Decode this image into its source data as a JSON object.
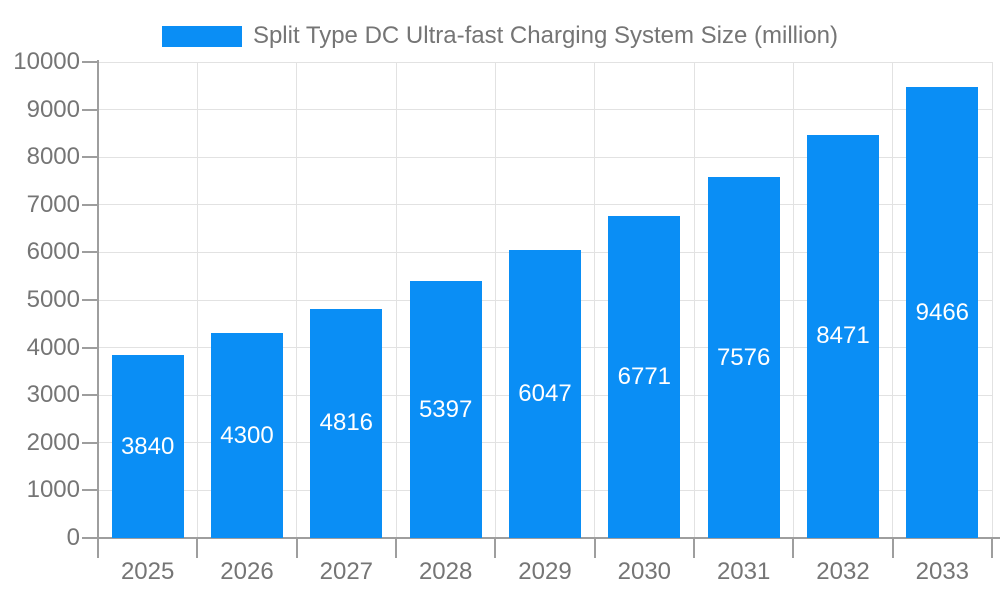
{
  "chart_data": {
    "type": "bar",
    "title": "",
    "xlabel": "",
    "ylabel": "",
    "categories": [
      "2025",
      "2026",
      "2027",
      "2028",
      "2029",
      "2030",
      "2031",
      "2032",
      "2033"
    ],
    "series": [
      {
        "name": "Split Type DC Ultra-fast Charging System Size (million)",
        "values": [
          3840,
          4300,
          4816,
          5397,
          6047,
          6771,
          7576,
          8471,
          9466
        ]
      }
    ],
    "value_labels_shown": true,
    "value_label_position": "inside-center",
    "ylim": [
      0,
      10000
    ],
    "yticks": [
      0,
      1000,
      2000,
      3000,
      4000,
      5000,
      6000,
      7000,
      8000,
      9000,
      10000
    ],
    "grid": "horizontal-and-vertical",
    "legend_position": "top-center",
    "colors": {
      "bar": "#0a8ef5",
      "value_label": "#ffffff",
      "axis_line": "#9e9e9e",
      "gridline": "#e2e2e2",
      "axis_text": "#757575",
      "background": "#ffffff"
    }
  }
}
